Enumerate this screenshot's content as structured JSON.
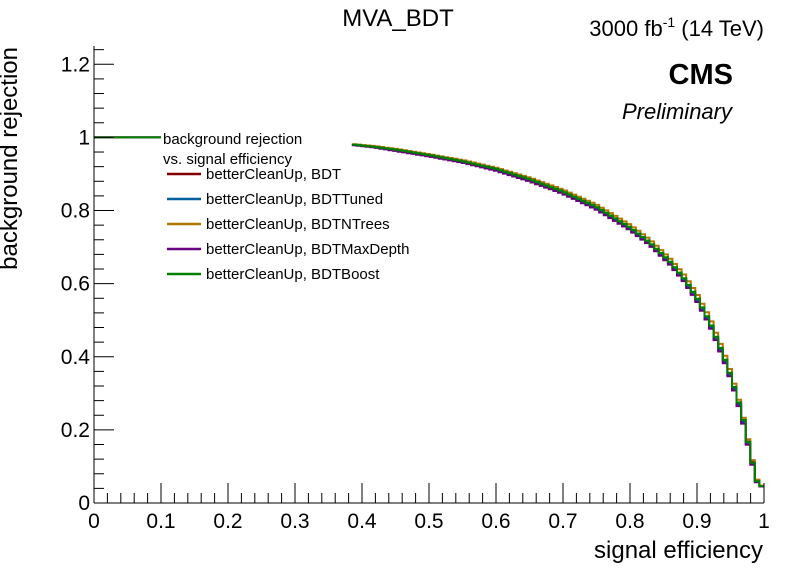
{
  "chart_data": {
    "type": "line",
    "title": "MVA_BDT",
    "lumi_prefix": "3000 fb",
    "lumi_exp": "-1",
    "lumi_suffix": " (14 TeV)",
    "cms_label": "CMS",
    "cms_sublabel": "Preliminary",
    "xlabel": "signal efficiency",
    "ylabel": "background rejection",
    "xlim": [
      0,
      1
    ],
    "ylim": [
      0,
      1.25
    ],
    "xticks": [
      "0",
      "0.1",
      "0.2",
      "0.3",
      "0.4",
      "0.5",
      "0.6",
      "0.7",
      "0.8",
      "0.9",
      "1"
    ],
    "yticks": [
      "0",
      "0.2",
      "0.4",
      "0.6",
      "0.8",
      "1",
      "1.2"
    ],
    "legend": {
      "header_line1": "background rejection",
      "header_line2": "vs. signal efficiency",
      "position": "upper-left"
    },
    "series": [
      {
        "name": "betterCleanUp, BDT",
        "color": "#800000",
        "x": [
          0.0,
          0.1,
          0.385,
          0.42,
          0.46,
          0.5,
          0.55,
          0.6,
          0.65,
          0.7,
          0.75,
          0.8,
          0.83,
          0.86,
          0.88,
          0.9,
          0.92,
          0.94,
          0.95,
          0.96,
          0.97,
          0.98,
          0.99,
          1.0
        ],
        "y": [
          1.0,
          1.0,
          0.98,
          0.974,
          0.963,
          0.951,
          0.934,
          0.912,
          0.884,
          0.85,
          0.808,
          0.752,
          0.71,
          0.657,
          0.614,
          0.56,
          0.49,
          0.4,
          0.348,
          0.29,
          0.22,
          0.135,
          0.06,
          0.04
        ]
      },
      {
        "name": "betterCleanUp, BDTTuned",
        "color": "#0060a0",
        "x": [
          0.0,
          0.1,
          0.385,
          0.42,
          0.46,
          0.5,
          0.55,
          0.6,
          0.65,
          0.7,
          0.75,
          0.8,
          0.83,
          0.86,
          0.88,
          0.9,
          0.92,
          0.94,
          0.95,
          0.96,
          0.97,
          0.98,
          0.99,
          1.0
        ],
        "y": [
          1.0,
          1.0,
          0.98,
          0.973,
          0.962,
          0.95,
          0.933,
          0.911,
          0.883,
          0.849,
          0.806,
          0.75,
          0.708,
          0.655,
          0.612,
          0.557,
          0.487,
          0.396,
          0.344,
          0.286,
          0.216,
          0.13,
          0.058,
          0.04
        ]
      },
      {
        "name": "betterCleanUp, BDTNTrees",
        "color": "#b07800",
        "x": [
          0.0,
          0.1,
          0.385,
          0.42,
          0.46,
          0.5,
          0.55,
          0.6,
          0.65,
          0.7,
          0.75,
          0.8,
          0.83,
          0.86,
          0.88,
          0.9,
          0.92,
          0.94,
          0.95,
          0.96,
          0.97,
          0.98,
          0.99,
          1.0
        ],
        "y": [
          1.0,
          1.0,
          0.982,
          0.976,
          0.966,
          0.954,
          0.938,
          0.917,
          0.89,
          0.857,
          0.816,
          0.761,
          0.72,
          0.668,
          0.626,
          0.572,
          0.503,
          0.413,
          0.36,
          0.3,
          0.228,
          0.14,
          0.062,
          0.04
        ]
      },
      {
        "name": "betterCleanUp, BDTMaxDepth",
        "color": "#6a0080",
        "x": [
          0.0,
          0.1,
          0.385,
          0.42,
          0.46,
          0.5,
          0.55,
          0.6,
          0.65,
          0.7,
          0.75,
          0.8,
          0.83,
          0.86,
          0.88,
          0.9,
          0.92,
          0.94,
          0.95,
          0.96,
          0.97,
          0.98,
          0.99,
          1.0
        ],
        "y": [
          1.0,
          1.0,
          0.979,
          0.972,
          0.96,
          0.948,
          0.931,
          0.909,
          0.88,
          0.846,
          0.803,
          0.747,
          0.705,
          0.652,
          0.608,
          0.553,
          0.483,
          0.392,
          0.34,
          0.282,
          0.212,
          0.125,
          0.055,
          0.04
        ]
      },
      {
        "name": "betterCleanUp, BDTBoost",
        "color": "#008000",
        "x": [
          0.0,
          0.1,
          0.385,
          0.42,
          0.46,
          0.5,
          0.55,
          0.6,
          0.65,
          0.7,
          0.75,
          0.8,
          0.83,
          0.86,
          0.88,
          0.9,
          0.92,
          0.94,
          0.95,
          0.96,
          0.97,
          0.98,
          0.99,
          1.0
        ],
        "y": [
          1.0,
          1.0,
          0.981,
          0.974,
          0.964,
          0.952,
          0.935,
          0.914,
          0.886,
          0.852,
          0.81,
          0.754,
          0.712,
          0.66,
          0.616,
          0.562,
          0.492,
          0.402,
          0.35,
          0.292,
          0.222,
          0.132,
          0.058,
          0.04
        ]
      }
    ]
  }
}
